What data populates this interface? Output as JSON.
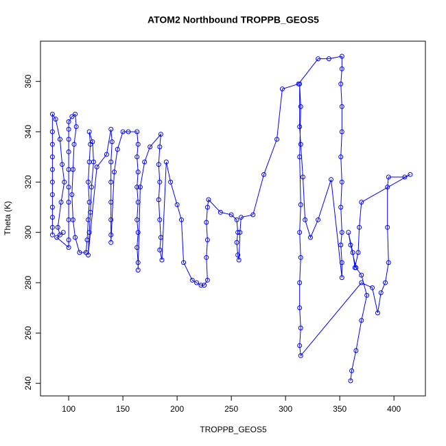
{
  "chart_data": {
    "type": "scatter",
    "title": "ATOM2 Northbound TROPPB_GEOS5",
    "x_label": "TROPPB_GEOS5",
    "y_label": "Theta (K)",
    "xlim": [
      74,
      429
    ],
    "ylim": [
      235,
      376
    ],
    "xticks": [
      100,
      150,
      200,
      250,
      300,
      350,
      400
    ],
    "yticks": [
      240,
      260,
      280,
      300,
      320,
      340,
      360
    ],
    "color": "#0000ff",
    "connect": true,
    "x": [
      85,
      85,
      85,
      85,
      85,
      85,
      85,
      85,
      85,
      85,
      85,
      88,
      92,
      94,
      96,
      93,
      90,
      92,
      95,
      89,
      100,
      100,
      100,
      100,
      100,
      100,
      100,
      100,
      100,
      100,
      103,
      106,
      107,
      105,
      104,
      103,
      104,
      106,
      110,
      116,
      117,
      118,
      119,
      118,
      119,
      120,
      119,
      122,
      123,
      121,
      120,
      119,
      118,
      126,
      135,
      139,
      140,
      139,
      139,
      139,
      139,
      139,
      139,
      142,
      145,
      150,
      155,
      163,
      164,
      163,
      164,
      163,
      164,
      163,
      164,
      163,
      164,
      164,
      166,
      170,
      175,
      185,
      184,
      183,
      184,
      183,
      184,
      185,
      184,
      186,
      190,
      194,
      200,
      204,
      206,
      214,
      218,
      222,
      225,
      228,
      227,
      228,
      227,
      228,
      229,
      240,
      250,
      255,
      256,
      255,
      256,
      257,
      258,
      259,
      270,
      280,
      292,
      297,
      312,
      330,
      340,
      352,
      352,
      351,
      352,
      352,
      351,
      352,
      351,
      352,
      351,
      352,
      352,
      342,
      330,
      323,
      318,
      316,
      314,
      313,
      313,
      314,
      313,
      314,
      313,
      314,
      313,
      313,
      314,
      313,
      314,
      370,
      380,
      385,
      388,
      392,
      395,
      394,
      394,
      395,
      410,
      415,
      370,
      368,
      367,
      364,
      362,
      358,
      360,
      365,
      370,
      375,
      370,
      365,
      361,
      360
    ],
    "values": [
      299,
      302,
      306,
      310,
      315,
      320,
      325,
      330,
      335,
      340,
      347,
      345,
      337,
      327,
      320,
      312,
      302,
      299,
      300,
      298,
      294,
      297,
      305,
      312,
      318,
      325,
      332,
      337,
      341,
      344,
      346,
      347,
      342,
      335,
      325,
      315,
      305,
      298,
      292,
      292,
      297,
      305,
      312,
      320,
      328,
      335,
      340,
      336,
      328,
      318,
      308,
      300,
      291,
      326,
      331,
      341,
      336,
      328,
      320,
      312,
      305,
      299,
      296,
      324,
      333,
      340,
      340,
      340,
      335,
      330,
      324,
      318,
      312,
      305,
      300,
      294,
      288,
      285,
      318,
      328,
      334,
      339,
      334,
      327,
      320,
      313,
      305,
      298,
      293,
      289,
      328,
      320,
      311,
      305,
      288,
      281,
      280,
      279,
      279,
      281,
      290,
      297,
      304,
      310,
      313,
      308,
      307,
      305,
      300,
      296,
      291,
      289,
      300,
      306,
      307,
      323,
      337,
      357,
      359,
      369,
      369,
      370,
      365,
      359,
      350,
      340,
      330,
      320,
      310,
      300,
      295,
      288,
      282,
      321,
      305,
      298,
      305,
      322,
      335,
      342,
      359,
      350,
      330,
      311,
      300,
      290,
      280,
      270,
      262,
      255,
      251,
      280,
      278,
      268,
      276,
      280,
      288,
      302,
      318,
      322,
      322,
      323,
      312,
      302,
      292,
      286,
      292,
      300,
      295,
      286,
      283,
      275,
      265,
      253,
      245,
      241
    ]
  }
}
